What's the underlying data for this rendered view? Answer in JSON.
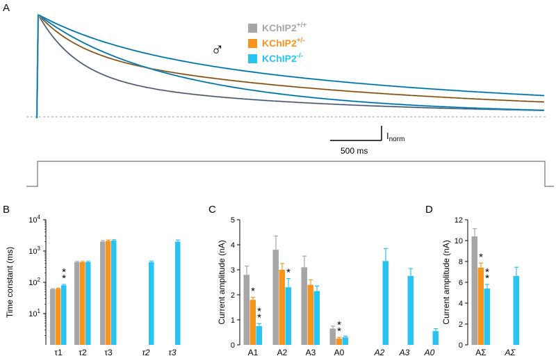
{
  "panels": {
    "A": {
      "label": "A"
    },
    "B": {
      "label": "B"
    },
    "C": {
      "label": "C"
    },
    "D": {
      "label": "D"
    }
  },
  "colors": {
    "wt": "#a6a6a6",
    "het": "#f7941d",
    "ko": "#29c3f2",
    "fit": "#1f3f66",
    "dashed": "#999999"
  },
  "legend": {
    "symbol": "♂",
    "entries": [
      {
        "base": "KChIP2",
        "sup": "+/+",
        "color": "#a6a6a6"
      },
      {
        "base": "KChIP2",
        "sup": "+/-",
        "color": "#f7941d"
      },
      {
        "base": "KChIP2",
        "sup": "-/-",
        "color": "#29c3f2"
      }
    ]
  },
  "scale_bar": {
    "time_label": "500 ms",
    "current_label": "I",
    "current_sub": "norm"
  },
  "chart_data": [
    {
      "panel": "A",
      "type": "line",
      "description_visible": "normalized current traces",
      "series_colors": [
        "#a6a6a6",
        "#f7941d",
        "#29c3f2"
      ],
      "baseline": "dashed"
    },
    {
      "panel": "B",
      "type": "bar",
      "ylabel": "Time constant (ms)",
      "yscale": "log",
      "ylim": [
        1,
        10000
      ],
      "yticks": [
        {
          "base": "10",
          "exp": "1"
        },
        {
          "base": "10",
          "exp": "2"
        },
        {
          "base": "10",
          "exp": "3"
        },
        {
          "base": "10",
          "exp": "4"
        }
      ],
      "groups": [
        {
          "label": "τ1",
          "italic": false,
          "values": [
            60,
            62,
            80
          ],
          "errors": [
            3,
            3,
            6
          ],
          "stars": [
            null,
            null,
            "**"
          ]
        },
        {
          "label": "τ2",
          "italic": false,
          "values": [
            440,
            440,
            440
          ],
          "errors": [
            25,
            25,
            25
          ],
          "stars": [
            null,
            null,
            null
          ]
        },
        {
          "label": "τ3",
          "italic": false,
          "values": [
            2000,
            2100,
            2150
          ],
          "errors": [
            150,
            150,
            150
          ],
          "stars": [
            null,
            null,
            null
          ]
        },
        {
          "label": "τ2",
          "italic": true,
          "values": [
            null,
            null,
            440
          ],
          "errors": [
            null,
            null,
            30
          ],
          "stars": [
            null,
            null,
            null
          ]
        },
        {
          "label": "τ3",
          "italic": true,
          "values": [
            null,
            null,
            2000
          ],
          "errors": [
            null,
            null,
            250
          ],
          "stars": [
            null,
            null,
            null
          ]
        }
      ]
    },
    {
      "panel": "C",
      "type": "bar",
      "ylabel": "Current amplitude (nA)",
      "ylim": [
        0,
        5
      ],
      "yticks": [
        "0",
        "1",
        "2",
        "3",
        "4",
        "5"
      ],
      "groups": [
        {
          "label": "A1",
          "italic": false,
          "values": [
            2.8,
            1.8,
            0.75
          ],
          "errors": [
            0.35,
            0.1,
            0.1
          ],
          "stars": [
            null,
            "*",
            "**"
          ]
        },
        {
          "label": "A2",
          "italic": false,
          "values": [
            3.8,
            3.0,
            2.3
          ],
          "errors": [
            0.55,
            0.25,
            0.35
          ],
          "stars": [
            null,
            null,
            "*"
          ]
        },
        {
          "label": "A3",
          "italic": false,
          "values": [
            3.1,
            2.4,
            2.15
          ],
          "errors": [
            0.45,
            0.2,
            0.2
          ],
          "stars": [
            null,
            null,
            null
          ]
        },
        {
          "label": "A0",
          "italic": false,
          "values": [
            0.65,
            0.25,
            0.3
          ],
          "errors": [
            0.1,
            0.05,
            0.05
          ],
          "stars": [
            null,
            "**",
            null
          ]
        },
        {
          "label": "A2",
          "italic": true,
          "values": [
            null,
            null,
            3.35
          ],
          "errors": [
            null,
            null,
            0.5
          ],
          "stars": [
            null,
            null,
            null
          ]
        },
        {
          "label": "A3",
          "italic": true,
          "values": [
            null,
            null,
            2.75
          ],
          "errors": [
            null,
            null,
            0.3
          ],
          "stars": [
            null,
            null,
            null
          ]
        },
        {
          "label": "A0",
          "italic": true,
          "values": [
            null,
            null,
            0.55
          ],
          "errors": [
            null,
            null,
            0.1
          ],
          "stars": [
            null,
            null,
            null
          ]
        }
      ]
    },
    {
      "panel": "D",
      "type": "bar",
      "ylabel": "Current amplitude (nA)",
      "ylim": [
        0,
        12
      ],
      "yticks": [
        "0",
        "2",
        "4",
        "6",
        "8",
        "10",
        "12"
      ],
      "groups": [
        {
          "label": "AΣ",
          "italic": false,
          "values": [
            10.4,
            7.4,
            5.4
          ],
          "errors": [
            0.75,
            0.45,
            0.4
          ],
          "stars": [
            null,
            "*",
            "**"
          ]
        },
        {
          "label": "AΣ",
          "italic": true,
          "values": [
            null,
            null,
            6.6
          ],
          "errors": [
            null,
            null,
            0.85
          ],
          "stars": [
            null,
            null,
            null
          ]
        }
      ]
    }
  ]
}
